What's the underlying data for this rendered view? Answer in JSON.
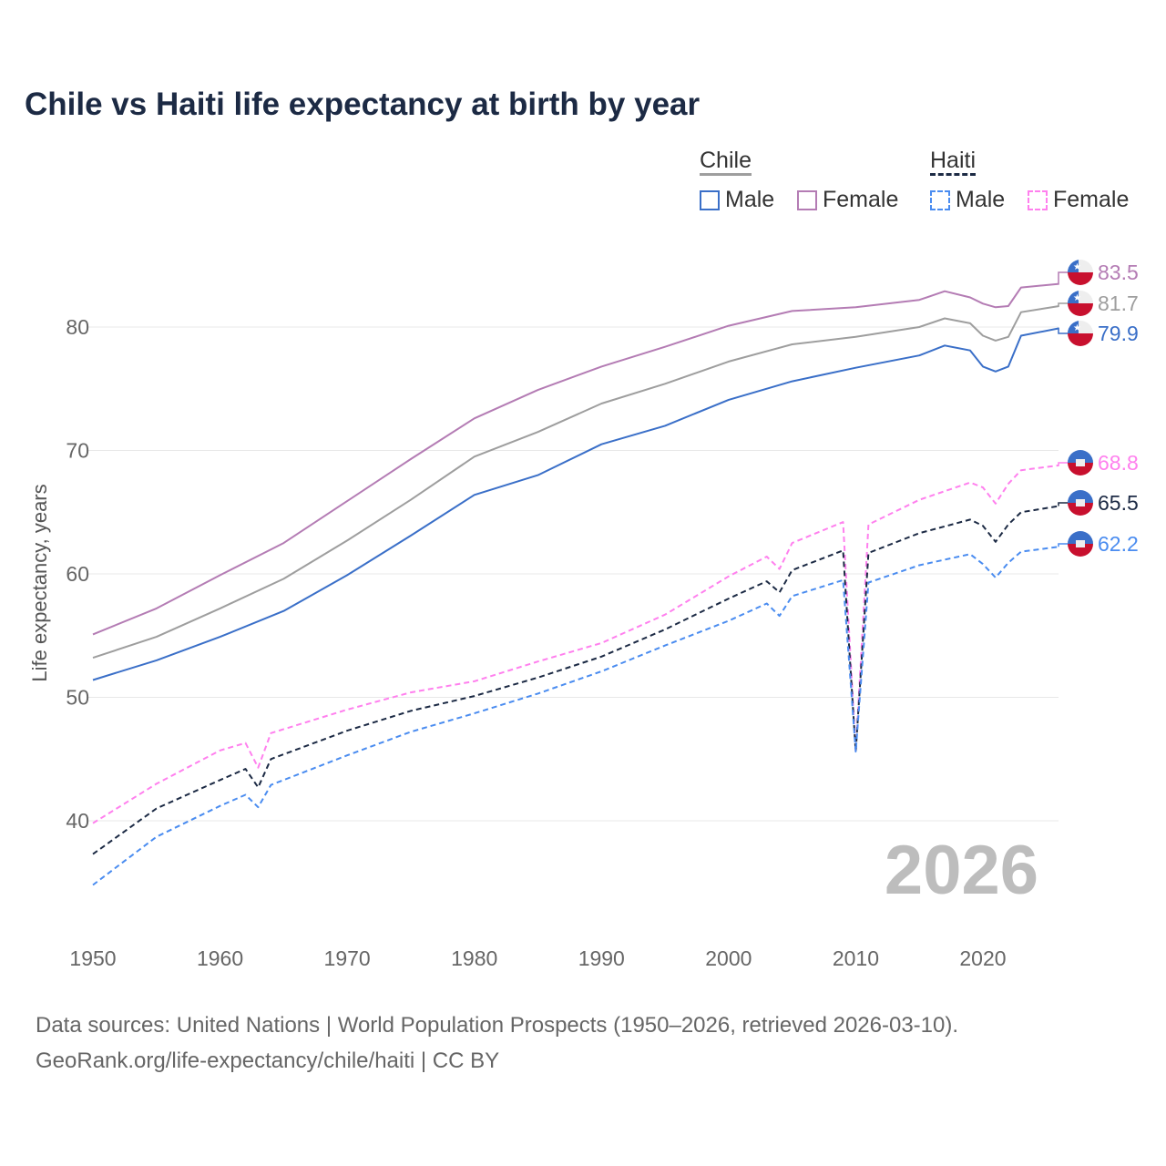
{
  "chart_data": {
    "type": "line",
    "title": "Chile vs Haiti life expectancy at birth by year",
    "xlabel": "",
    "ylabel": "Life expectancy, years",
    "xlim": [
      1950,
      2026
    ],
    "ylim": [
      33,
      86
    ],
    "x_ticks": [
      "1950",
      "1960",
      "1970",
      "1980",
      "1990",
      "2000",
      "2010",
      "2020"
    ],
    "y_ticks": [
      "40",
      "50",
      "60",
      "70",
      "80"
    ],
    "grid": true,
    "legend_placement": "top-right",
    "legend": {
      "groups": [
        {
          "name": "Chile",
          "items": [
            "Male",
            "Female"
          ]
        },
        {
          "name": "Haiti",
          "items": [
            "Male",
            "Female"
          ]
        }
      ]
    },
    "series": [
      {
        "name": "Chile Female",
        "country": "Chile",
        "color": "#b47cb4",
        "dashed": false,
        "end_label": "83.5",
        "x": [
          1950,
          1955,
          1960,
          1965,
          1970,
          1975,
          1980,
          1985,
          1990,
          1995,
          2000,
          2005,
          2010,
          2015,
          2017,
          2019,
          2020,
          2021,
          2022,
          2023,
          2026
        ],
        "y": [
          55.1,
          57.2,
          59.9,
          62.5,
          65.9,
          69.3,
          72.6,
          74.9,
          76.8,
          78.4,
          80.1,
          81.3,
          81.6,
          82.2,
          82.9,
          82.4,
          81.9,
          81.6,
          81.7,
          83.2,
          83.5
        ]
      },
      {
        "name": "Chile",
        "country": "Chile",
        "color": "#9e9e9e",
        "dashed": false,
        "end_label": "81.7",
        "x": [
          1950,
          1955,
          1960,
          1965,
          1970,
          1975,
          1980,
          1985,
          1990,
          1995,
          2000,
          2005,
          2010,
          2015,
          2017,
          2019,
          2020,
          2021,
          2022,
          2023,
          2026
        ],
        "y": [
          53.2,
          54.9,
          57.2,
          59.6,
          62.7,
          66.0,
          69.5,
          71.5,
          73.8,
          75.4,
          77.2,
          78.6,
          79.2,
          80.0,
          80.7,
          80.3,
          79.3,
          78.9,
          79.2,
          81.2,
          81.7
        ]
      },
      {
        "name": "Chile Male",
        "country": "Chile",
        "color": "#3a6fc8",
        "dashed": false,
        "end_label": "79.9",
        "x": [
          1950,
          1955,
          1960,
          1965,
          1970,
          1975,
          1980,
          1985,
          1990,
          1995,
          2000,
          2005,
          2010,
          2015,
          2017,
          2019,
          2020,
          2021,
          2022,
          2023,
          2026
        ],
        "y": [
          51.4,
          53.0,
          54.9,
          57.0,
          59.9,
          63.1,
          66.4,
          68.0,
          70.5,
          72.0,
          74.1,
          75.6,
          76.7,
          77.7,
          78.5,
          78.1,
          76.8,
          76.4,
          76.8,
          79.3,
          79.9
        ]
      },
      {
        "name": "Haiti Female",
        "country": "Haiti",
        "color": "#ff80ee",
        "dashed": true,
        "end_label": "68.8",
        "x": [
          1950,
          1955,
          1960,
          1962,
          1963,
          1964,
          1970,
          1975,
          1980,
          1985,
          1990,
          1995,
          2000,
          2003,
          2004,
          2005,
          2009,
          2010,
          2011,
          2015,
          2019,
          2020,
          2021,
          2022,
          2023,
          2026
        ],
        "y": [
          39.8,
          43.0,
          45.7,
          46.3,
          44.3,
          47.1,
          49.0,
          50.4,
          51.3,
          52.9,
          54.4,
          56.7,
          59.8,
          61.4,
          60.4,
          62.5,
          64.2,
          45.6,
          64.0,
          66.0,
          67.4,
          67.0,
          65.7,
          67.3,
          68.4,
          68.8
        ]
      },
      {
        "name": "Haiti",
        "country": "Haiti",
        "color": "#1c2a44",
        "dashed": true,
        "end_label": "65.5",
        "x": [
          1950,
          1955,
          1960,
          1962,
          1963,
          1964,
          1970,
          1975,
          1980,
          1985,
          1990,
          1995,
          2000,
          2003,
          2004,
          2005,
          2009,
          2010,
          2011,
          2015,
          2019,
          2020,
          2021,
          2022,
          2023,
          2026
        ],
        "y": [
          37.3,
          41.0,
          43.3,
          44.2,
          42.7,
          45.0,
          47.3,
          48.9,
          50.1,
          51.6,
          53.3,
          55.5,
          58.0,
          59.4,
          58.5,
          60.3,
          61.9,
          45.6,
          61.7,
          63.3,
          64.4,
          63.9,
          62.6,
          64.0,
          65.0,
          65.5
        ]
      },
      {
        "name": "Haiti Male",
        "country": "Haiti",
        "color": "#4a8cf0",
        "dashed": true,
        "end_label": "62.2",
        "x": [
          1950,
          1955,
          1960,
          1962,
          1963,
          1964,
          1970,
          1975,
          1980,
          1985,
          1990,
          1995,
          2000,
          2003,
          2004,
          2005,
          2009,
          2010,
          2011,
          2015,
          2019,
          2020,
          2021,
          2022,
          2023,
          2026
        ],
        "y": [
          34.8,
          38.7,
          41.2,
          42.1,
          41.1,
          42.9,
          45.3,
          47.2,
          48.7,
          50.3,
          52.1,
          54.2,
          56.2,
          57.6,
          56.6,
          58.2,
          59.5,
          45.6,
          59.3,
          60.7,
          61.6,
          60.8,
          59.7,
          60.9,
          61.8,
          62.2
        ]
      }
    ],
    "annotations": {
      "year_watermark": "2026"
    }
  },
  "source_line1": "Data sources: United Nations | World Population Prospects (1950–2026, retrieved 2026-03-10).",
  "source_line2": "GeoRank.org/life-expectancy/chile/haiti | CC BY"
}
